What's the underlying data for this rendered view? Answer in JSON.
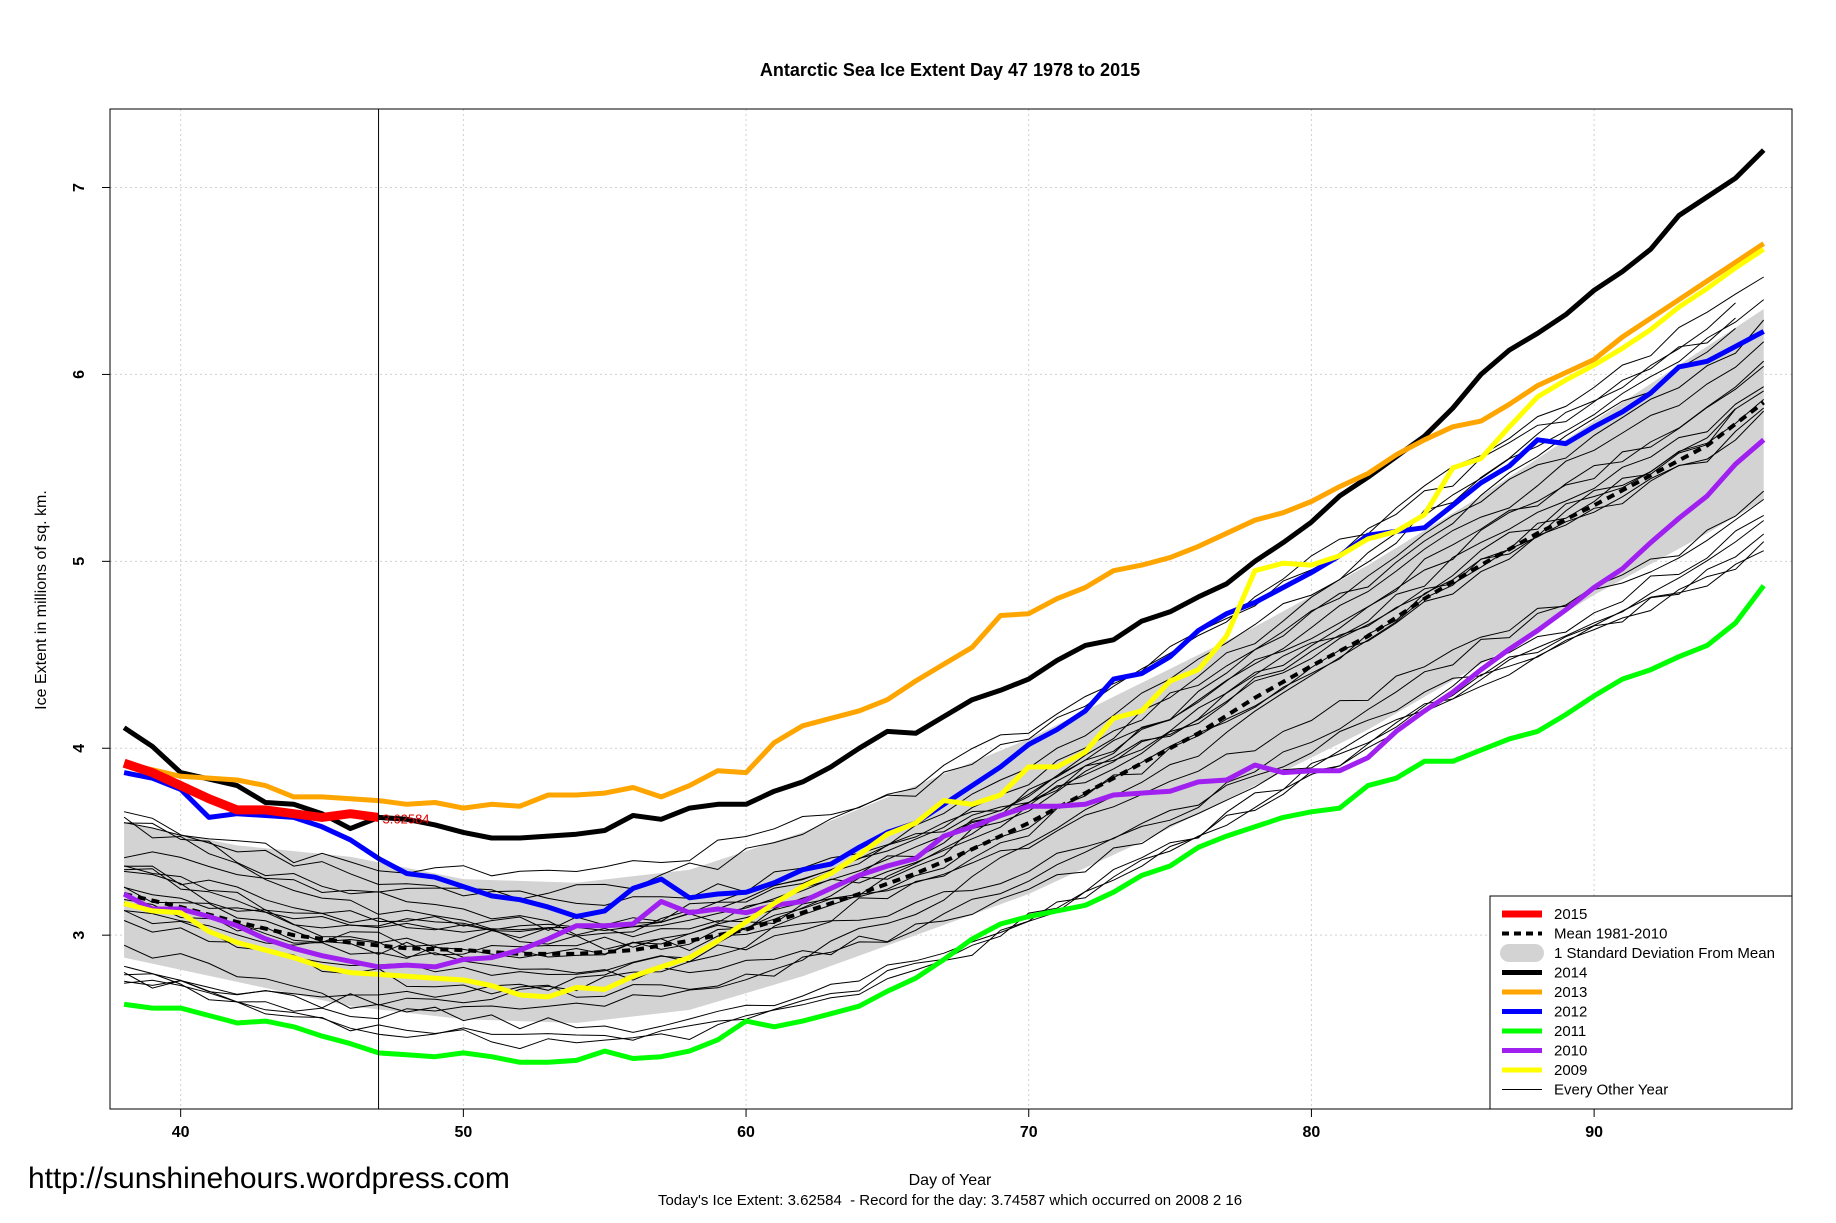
{
  "chart_data": {
    "type": "line",
    "title": "Antarctic Sea Ice Extent Day 47 1978 to 2015",
    "xlabel": "Day of Year",
    "ylabel": "Ice Extent in millions of sq. km.",
    "xlim": [
      37.5,
      97
    ],
    "ylim": [
      2.07,
      7.42
    ],
    "xticks": [
      40,
      50,
      60,
      70,
      80,
      90
    ],
    "yticks": [
      3,
      4,
      5,
      6,
      7
    ],
    "grid": true,
    "legend_position": "bottom-right",
    "marker_day": 47,
    "marker_label": "3.62584",
    "footer": "Today's Ice Extent: 3.62584  - Record for the day: 3.74587 which occurred on 2008 2 16",
    "watermark": "http://sunshinehours.wordpress.com",
    "std_band": {
      "name": "1 Standard Deviation From Mean",
      "color": "#d3d3d3",
      "x": [
        38,
        42,
        46,
        50,
        54,
        58,
        62,
        66,
        70,
        74,
        78,
        82,
        86,
        90,
        94,
        96
      ],
      "upper": [
        3.6,
        3.48,
        3.42,
        3.3,
        3.28,
        3.35,
        3.55,
        3.8,
        4.05,
        4.35,
        4.65,
        4.98,
        5.35,
        5.75,
        6.15,
        6.35
      ],
      "lower": [
        2.88,
        2.75,
        2.62,
        2.55,
        2.53,
        2.6,
        2.78,
        3.0,
        3.22,
        3.5,
        3.8,
        4.1,
        4.45,
        4.82,
        5.15,
        5.33
      ]
    },
    "mean": {
      "name": "Mean 1981-2010",
      "color": "#000000",
      "x": [
        38,
        40,
        42,
        44,
        46,
        48,
        50,
        52,
        54,
        56,
        58,
        60,
        62,
        64,
        66,
        68,
        70,
        72,
        74,
        76,
        78,
        80,
        82,
        84,
        86,
        88,
        90,
        92,
        94,
        96
      ],
      "y": [
        3.22,
        3.15,
        3.07,
        3.0,
        2.96,
        2.93,
        2.92,
        2.9,
        2.9,
        2.92,
        2.97,
        3.03,
        3.12,
        3.22,
        3.33,
        3.46,
        3.6,
        3.76,
        3.92,
        4.08,
        4.27,
        4.44,
        4.6,
        4.8,
        4.98,
        5.15,
        5.3,
        5.46,
        5.62,
        5.85
      ]
    },
    "series": [
      {
        "name": "2014",
        "color": "#000000",
        "x": [
          38,
          39,
          40,
          42,
          43,
          44,
          45,
          46,
          47,
          48,
          49,
          50,
          51,
          52,
          53,
          54,
          55,
          56,
          57,
          58,
          59,
          60,
          61,
          62,
          63,
          64,
          65,
          66,
          67,
          68,
          69,
          70,
          71,
          72,
          73,
          74,
          75,
          76,
          77,
          78,
          79,
          80,
          81,
          82,
          83,
          84,
          85,
          86,
          87,
          88,
          89,
          90,
          91,
          92,
          93,
          94,
          95,
          96
        ],
        "y": [
          4.11,
          4.01,
          3.87,
          3.8,
          3.71,
          3.7,
          3.65,
          3.57,
          3.63,
          3.62,
          3.59,
          3.55,
          3.52,
          3.52,
          3.53,
          3.54,
          3.56,
          3.64,
          3.62,
          3.68,
          3.7,
          3.7,
          3.77,
          3.82,
          3.9,
          4.0,
          4.09,
          4.08,
          4.17,
          4.26,
          4.31,
          4.37,
          4.47,
          4.55,
          4.58,
          4.68,
          4.73,
          4.81,
          4.88,
          5.0,
          5.1,
          5.21,
          5.35,
          5.45,
          5.56,
          5.67,
          5.82,
          6.0,
          6.13,
          6.22,
          6.32,
          6.45,
          6.55,
          6.67,
          6.85,
          6.95,
          7.05,
          7.2
        ]
      },
      {
        "name": "2013",
        "color": "#ffa500",
        "x": [
          38,
          40,
          42,
          43,
          44,
          45,
          46,
          47,
          48,
          49,
          50,
          51,
          52,
          53,
          54,
          55,
          56,
          57,
          58,
          59,
          60,
          61,
          62,
          63,
          64,
          65,
          66,
          67,
          68,
          69,
          70,
          71,
          72,
          73,
          74,
          75,
          76,
          77,
          78,
          79,
          80,
          81,
          82,
          83,
          84,
          85,
          86,
          87,
          88,
          89,
          90,
          91,
          92,
          93,
          94,
          95,
          96
        ],
        "y": [
          3.92,
          3.85,
          3.83,
          3.8,
          3.74,
          3.74,
          3.73,
          3.72,
          3.7,
          3.71,
          3.68,
          3.7,
          3.69,
          3.75,
          3.75,
          3.76,
          3.79,
          3.74,
          3.8,
          3.88,
          3.87,
          4.03,
          4.12,
          4.16,
          4.2,
          4.26,
          4.36,
          4.45,
          4.54,
          4.71,
          4.72,
          4.8,
          4.86,
          4.95,
          4.98,
          5.02,
          5.08,
          5.15,
          5.22,
          5.26,
          5.32,
          5.4,
          5.47,
          5.57,
          5.65,
          5.72,
          5.75,
          5.84,
          5.94,
          6.01,
          6.08,
          6.2,
          6.3,
          6.4,
          6.5,
          6.6,
          6.7
        ]
      },
      {
        "name": "2012",
        "color": "#0000ff",
        "x": [
          38,
          39,
          40,
          41,
          42,
          43,
          44,
          45,
          46,
          47,
          48,
          49,
          50,
          51,
          52,
          53,
          54,
          55,
          56,
          57,
          58,
          59,
          60,
          61,
          62,
          63,
          64,
          65,
          66,
          67,
          68,
          69,
          70,
          71,
          72,
          73,
          74,
          75,
          76,
          77,
          78,
          79,
          80,
          81,
          82,
          83,
          84,
          85,
          86,
          87,
          88,
          89,
          90,
          91,
          92,
          93,
          94,
          95,
          96
        ],
        "y": [
          3.87,
          3.84,
          3.78,
          3.63,
          3.65,
          3.64,
          3.63,
          3.58,
          3.51,
          3.41,
          3.33,
          3.31,
          3.26,
          3.21,
          3.19,
          3.15,
          3.1,
          3.13,
          3.25,
          3.3,
          3.2,
          3.22,
          3.23,
          3.28,
          3.35,
          3.38,
          3.47,
          3.55,
          3.6,
          3.7,
          3.8,
          3.9,
          4.02,
          4.1,
          4.2,
          4.37,
          4.4,
          4.49,
          4.63,
          4.72,
          4.78,
          4.86,
          4.94,
          5.03,
          5.14,
          5.16,
          5.18,
          5.3,
          5.42,
          5.51,
          5.65,
          5.63,
          5.72,
          5.8,
          5.9,
          6.04,
          6.07,
          6.15,
          6.23
        ]
      },
      {
        "name": "2011",
        "color": "#00ff00",
        "x": [
          38,
          39,
          40,
          41,
          42,
          43,
          44,
          45,
          46,
          47,
          48,
          49,
          50,
          51,
          52,
          53,
          54,
          55,
          56,
          57,
          58,
          59,
          60,
          61,
          62,
          63,
          64,
          65,
          66,
          67,
          68,
          69,
          70,
          71,
          72,
          73,
          74,
          75,
          76,
          77,
          78,
          79,
          80,
          81,
          82,
          83,
          84,
          85,
          86,
          87,
          88,
          89,
          90,
          91,
          92,
          93,
          94,
          95,
          96
        ],
        "y": [
          2.63,
          2.61,
          2.61,
          2.57,
          2.53,
          2.54,
          2.51,
          2.46,
          2.42,
          2.37,
          2.36,
          2.35,
          2.37,
          2.35,
          2.32,
          2.32,
          2.33,
          2.38,
          2.34,
          2.35,
          2.38,
          2.44,
          2.54,
          2.51,
          2.54,
          2.58,
          2.62,
          2.7,
          2.77,
          2.87,
          2.98,
          3.06,
          3.1,
          3.13,
          3.16,
          3.23,
          3.32,
          3.37,
          3.47,
          3.53,
          3.58,
          3.63,
          3.66,
          3.68,
          3.8,
          3.84,
          3.93,
          3.93,
          3.99,
          4.05,
          4.09,
          4.18,
          4.28,
          4.37,
          4.42,
          4.49,
          4.55,
          4.67,
          4.87
        ]
      },
      {
        "name": "2010",
        "color": "#a020f0",
        "x": [
          38,
          39,
          40,
          41,
          42,
          43,
          44,
          45,
          46,
          47,
          48,
          49,
          50,
          51,
          52,
          53,
          54,
          55,
          56,
          57,
          58,
          59,
          60,
          61,
          62,
          63,
          64,
          65,
          66,
          67,
          68,
          69,
          70,
          71,
          72,
          73,
          74,
          75,
          76,
          77,
          78,
          79,
          80,
          81,
          82,
          83,
          84,
          85,
          86,
          87,
          88,
          89,
          90,
          91,
          92,
          93,
          94,
          95,
          96
        ],
        "y": [
          3.22,
          3.14,
          3.14,
          3.1,
          3.05,
          2.98,
          2.93,
          2.89,
          2.86,
          2.83,
          2.84,
          2.83,
          2.87,
          2.88,
          2.92,
          2.98,
          3.05,
          3.05,
          3.06,
          3.18,
          3.12,
          3.14,
          3.12,
          3.16,
          3.18,
          3.25,
          3.32,
          3.37,
          3.41,
          3.53,
          3.58,
          3.64,
          3.69,
          3.69,
          3.7,
          3.75,
          3.76,
          3.77,
          3.82,
          3.83,
          3.91,
          3.87,
          3.88,
          3.88,
          3.95,
          4.09,
          4.2,
          4.3,
          4.42,
          4.53,
          4.63,
          4.74,
          4.86,
          4.96,
          5.1,
          5.23,
          5.35,
          5.52,
          5.65
        ]
      },
      {
        "name": "2009",
        "color": "#ffff00",
        "x": [
          38,
          39,
          40,
          41,
          42,
          43,
          44,
          45,
          46,
          47,
          48,
          49,
          50,
          51,
          52,
          53,
          54,
          55,
          56,
          57,
          58,
          59,
          60,
          61,
          62,
          63,
          64,
          65,
          66,
          67,
          68,
          69,
          70,
          71,
          72,
          73,
          74,
          75,
          76,
          77,
          78,
          79,
          80,
          81,
          82,
          83,
          84,
          85,
          86,
          87,
          88,
          89,
          90,
          91,
          92,
          93,
          94,
          95,
          96
        ],
        "y": [
          3.17,
          3.13,
          3.12,
          3.02,
          2.96,
          2.92,
          2.88,
          2.83,
          2.8,
          2.79,
          2.78,
          2.77,
          2.76,
          2.73,
          2.68,
          2.67,
          2.72,
          2.71,
          2.78,
          2.83,
          2.88,
          2.97,
          3.07,
          3.17,
          3.26,
          3.33,
          3.43,
          3.54,
          3.6,
          3.72,
          3.7,
          3.75,
          3.9,
          3.9,
          3.98,
          4.16,
          4.2,
          4.36,
          4.42,
          4.6,
          4.95,
          4.99,
          4.98,
          5.03,
          5.12,
          5.16,
          5.25,
          5.5,
          5.55,
          5.72,
          5.88,
          5.97,
          6.05,
          6.14,
          6.24,
          6.36,
          6.46,
          6.57,
          6.67
        ]
      },
      {
        "name": "2015",
        "color": "#ff0000",
        "x": [
          38,
          39,
          40,
          41,
          42,
          43,
          44,
          45,
          46,
          47
        ],
        "y": [
          3.92,
          3.87,
          3.8,
          3.73,
          3.67,
          3.67,
          3.65,
          3.63,
          3.65,
          3.63
        ]
      }
    ],
    "legend": [
      {
        "label": "2015",
        "color": "#ff0000",
        "kind": "thick"
      },
      {
        "label": "Mean 1981-2010",
        "color": "#000000",
        "kind": "dashed"
      },
      {
        "label": "1 Standard Deviation From Mean",
        "color": "#d3d3d3",
        "kind": "band"
      },
      {
        "label": "2014",
        "color": "#000000",
        "kind": "thick"
      },
      {
        "label": "2013",
        "color": "#ffa500",
        "kind": "thick"
      },
      {
        "label": "2012",
        "color": "#0000ff",
        "kind": "thick"
      },
      {
        "label": "2011",
        "color": "#00ff00",
        "kind": "thick"
      },
      {
        "label": "2010",
        "color": "#a020f0",
        "kind": "thick"
      },
      {
        "label": "2009",
        "color": "#ffff00",
        "kind": "thick"
      },
      {
        "label": "Every Other Year",
        "color": "#000000",
        "kind": "thin"
      }
    ]
  }
}
